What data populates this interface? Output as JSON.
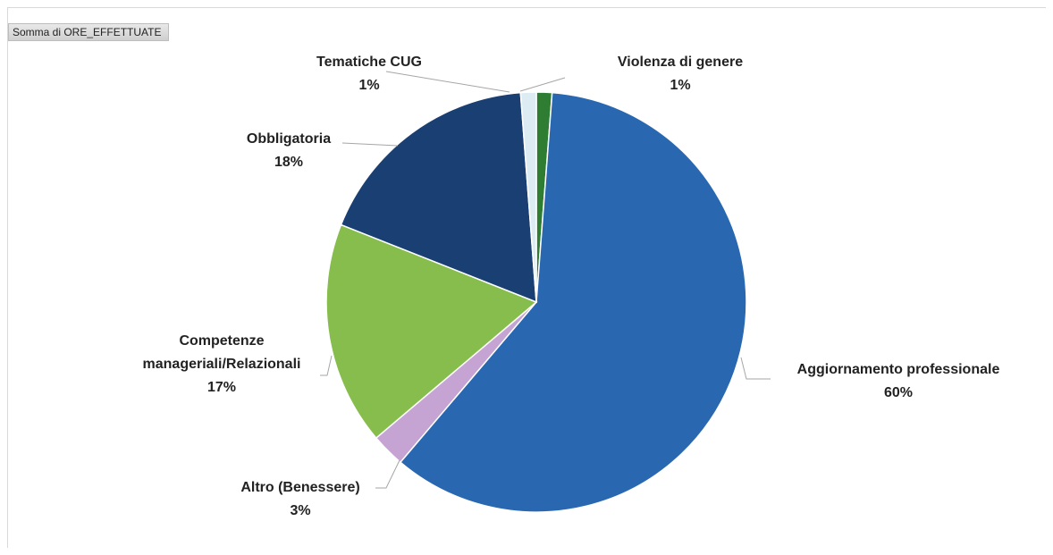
{
  "field_button": {
    "label": "Somma di ORE_EFFETTUATE"
  },
  "chart_data": {
    "type": "pie",
    "title": "",
    "slices": [
      {
        "name": "Violenza di genere",
        "pct_label": "1%",
        "value": 1.2,
        "color": "#2e7d32"
      },
      {
        "name": "Aggiornamento professionale",
        "pct_label": "60%",
        "value": 60.0,
        "color": "#2968b0"
      },
      {
        "name": "Altro (Benessere)",
        "pct_label": "3%",
        "value": 2.6,
        "color": "#c5a3d3"
      },
      {
        "name": "Competenze manageriali/Relazionali",
        "name_lines": [
          "Competenze",
          "manageriali/Relazionali"
        ],
        "pct_label": "17%",
        "value": 17.2,
        "color": "#86bd4c"
      },
      {
        "name": "Obbligatoria",
        "pct_label": "18%",
        "value": 17.8,
        "color": "#1a3f73"
      },
      {
        "name": "Tematiche CUG",
        "pct_label": "1%",
        "value": 1.2,
        "color": "#dcecf2"
      }
    ]
  }
}
